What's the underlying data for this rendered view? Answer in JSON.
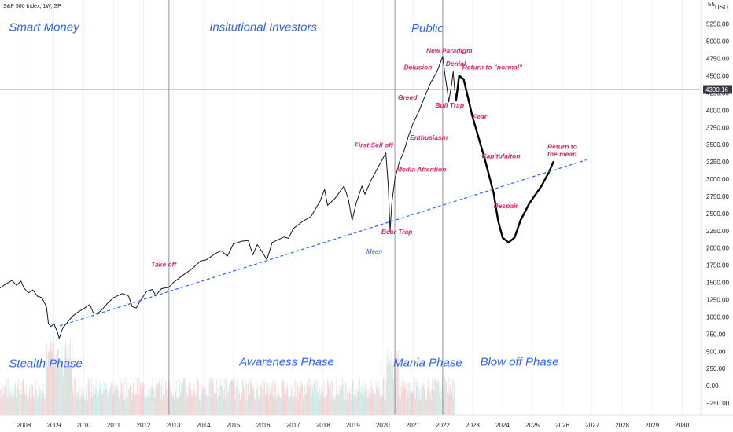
{
  "chart_data": {
    "type": "line",
    "title": "S&P 500 Index, 1W, SP",
    "currency": "USD",
    "xlabel": "",
    "ylabel": "",
    "xlim": [
      2007.2,
      2030.6
    ],
    "ylim": [
      -420,
      5600
    ],
    "x_ticks": [
      "2008",
      "2009",
      "2010",
      "2011",
      "2012",
      "2013",
      "2014",
      "2015",
      "2016",
      "2017",
      "2018",
      "2019",
      "2020",
      "2021",
      "2022",
      "2023",
      "2024",
      "2025",
      "2026",
      "2027",
      "2028",
      "2029",
      "2030"
    ],
    "y_ticks": [
      5250,
      5000,
      4750,
      4500,
      4250,
      4000,
      3750,
      3500,
      3250,
      3000,
      2750,
      2500,
      2250,
      2000,
      1750,
      1500,
      1250,
      1000,
      750,
      500,
      250,
      0,
      -250
    ],
    "y_tick_labels": [
      "5250.00",
      "5000.00",
      "4750.00",
      "4500.00",
      "4250.00",
      "4000.00",
      "3750.00",
      "3500.00",
      "3250.00",
      "3000.00",
      "2750.00",
      "2500.00",
      "2250.00",
      "2000.00",
      "1750.00",
      "1500.00",
      "1250.00",
      "1000.00",
      "750.00",
      "500.00",
      "250.00",
      "0.00",
      "−250.00"
    ],
    "top_partial_label": "55",
    "current_price": {
      "value": 4300.16,
      "label": "4300.16"
    },
    "vertical_lines_x": [
      2012.85,
      2020.4,
      2022.0
    ],
    "series": [
      {
        "style": "price",
        "points": [
          [
            2007.2,
            1420
          ],
          [
            2007.4,
            1480
          ],
          [
            2007.6,
            1530
          ],
          [
            2007.75,
            1460
          ],
          [
            2007.9,
            1520
          ],
          [
            2008.0,
            1420
          ],
          [
            2008.15,
            1350
          ],
          [
            2008.3,
            1390
          ],
          [
            2008.45,
            1300
          ],
          [
            2008.6,
            1280
          ],
          [
            2008.75,
            1150
          ],
          [
            2008.82,
            900
          ],
          [
            2008.9,
            860
          ],
          [
            2009.0,
            900
          ],
          [
            2009.1,
            800
          ],
          [
            2009.18,
            690
          ],
          [
            2009.3,
            840
          ],
          [
            2009.45,
            920
          ],
          [
            2009.6,
            1000
          ],
          [
            2009.8,
            1070
          ],
          [
            2010.0,
            1120
          ],
          [
            2010.2,
            1180
          ],
          [
            2010.32,
            1060
          ],
          [
            2010.45,
            1050
          ],
          [
            2010.6,
            1100
          ],
          [
            2010.8,
            1200
          ],
          [
            2011.0,
            1280
          ],
          [
            2011.3,
            1340
          ],
          [
            2011.5,
            1300
          ],
          [
            2011.62,
            1150
          ],
          [
            2011.75,
            1130
          ],
          [
            2011.9,
            1240
          ],
          [
            2012.1,
            1370
          ],
          [
            2012.3,
            1400
          ],
          [
            2012.4,
            1310
          ],
          [
            2012.6,
            1410
          ],
          [
            2012.85,
            1430
          ],
          [
            2013.0,
            1500
          ],
          [
            2013.3,
            1600
          ],
          [
            2013.6,
            1690
          ],
          [
            2013.9,
            1810
          ],
          [
            2014.1,
            1830
          ],
          [
            2014.4,
            1920
          ],
          [
            2014.6,
            1960
          ],
          [
            2014.8,
            1880
          ],
          [
            2015.0,
            2060
          ],
          [
            2015.3,
            2100
          ],
          [
            2015.5,
            2110
          ],
          [
            2015.65,
            1900
          ],
          [
            2015.8,
            2050
          ],
          [
            2016.0,
            1920
          ],
          [
            2016.12,
            1830
          ],
          [
            2016.3,
            2080
          ],
          [
            2016.5,
            2120
          ],
          [
            2016.7,
            2160
          ],
          [
            2016.85,
            2140
          ],
          [
            2017.0,
            2280
          ],
          [
            2017.3,
            2380
          ],
          [
            2017.6,
            2460
          ],
          [
            2017.9,
            2680
          ],
          [
            2018.05,
            2850
          ],
          [
            2018.15,
            2620
          ],
          [
            2018.4,
            2720
          ],
          [
            2018.7,
            2900
          ],
          [
            2018.85,
            2700
          ],
          [
            2018.97,
            2400
          ],
          [
            2019.1,
            2640
          ],
          [
            2019.3,
            2900
          ],
          [
            2019.4,
            2780
          ],
          [
            2019.6,
            2980
          ],
          [
            2019.9,
            3220
          ],
          [
            2020.1,
            3380
          ],
          [
            2020.18,
            2900
          ],
          [
            2020.24,
            2240
          ],
          [
            2020.3,
            2650
          ],
          [
            2020.4,
            3000
          ],
          [
            2020.55,
            3250
          ],
          [
            2020.7,
            3400
          ],
          [
            2020.85,
            3620
          ],
          [
            2021.0,
            3800
          ],
          [
            2021.2,
            3980
          ],
          [
            2021.4,
            4200
          ],
          [
            2021.6,
            4400
          ],
          [
            2021.8,
            4550
          ],
          [
            2022.0,
            4780
          ],
          [
            2022.08,
            4500
          ],
          [
            2022.15,
            4300
          ],
          [
            2022.2,
            4120
          ],
          [
            2022.3,
            4380
          ],
          [
            2022.35,
            4560
          ],
          [
            2022.4,
            4300
          ],
          [
            2022.45,
            4150
          ]
        ]
      },
      {
        "style": "projection",
        "points": [
          [
            2022.45,
            4150
          ],
          [
            2022.55,
            4500
          ],
          [
            2022.7,
            4450
          ],
          [
            2023.0,
            3900
          ],
          [
            2023.4,
            3300
          ],
          [
            2023.7,
            2800
          ],
          [
            2023.85,
            2400
          ],
          [
            2024.0,
            2150
          ],
          [
            2024.2,
            2080
          ],
          [
            2024.4,
            2150
          ],
          [
            2024.6,
            2400
          ],
          [
            2024.9,
            2650
          ],
          [
            2025.3,
            2900
          ],
          [
            2025.55,
            3100
          ],
          [
            2025.7,
            3250
          ]
        ]
      },
      {
        "style": "mean",
        "points": [
          [
            2009.2,
            870
          ],
          [
            2026.8,
            3280
          ]
        ]
      }
    ],
    "phase_labels": [
      {
        "text": "Smart Money",
        "x": 2007.5,
        "y": 5150
      },
      {
        "text": "Insitutional Investors",
        "x": 2014.2,
        "y": 5150
      },
      {
        "text": "Public",
        "x": 2020.95,
        "y": 5130
      },
      {
        "text": "Stealth Phase",
        "x": 2007.5,
        "y": 270
      },
      {
        "text": "Awareness Phase",
        "x": 2015.2,
        "y": 290
      },
      {
        "text": "Mania Phase",
        "x": 2020.35,
        "y": 280
      },
      {
        "text": "Blow off Phase",
        "x": 2023.25,
        "y": 290
      }
    ],
    "annotations": [
      {
        "text": "New Paradigm",
        "x": 2021.45,
        "y": 4830
      },
      {
        "text": "Denial",
        "x": 2022.1,
        "y": 4640
      },
      {
        "text": "Delusion",
        "x": 2020.7,
        "y": 4590
      },
      {
        "text": "Return to \"normal\"",
        "x": 2022.65,
        "y": 4590
      },
      {
        "text": "Greed",
        "x": 2020.5,
        "y": 4150
      },
      {
        "text": "Bull Trap",
        "x": 2021.75,
        "y": 4040
      },
      {
        "text": "Fear",
        "x": 2023.0,
        "y": 3870
      },
      {
        "text": "Enthusiasm",
        "x": 2020.9,
        "y": 3570
      },
      {
        "text": "First Sell off",
        "x": 2019.05,
        "y": 3460
      },
      {
        "text": "Return to",
        "x": 2025.5,
        "y": 3440
      },
      {
        "text": "the mean",
        "x": 2025.5,
        "y": 3330
      },
      {
        "text": "Capitulaiton",
        "x": 2023.3,
        "y": 3300
      },
      {
        "text": "Media Attention",
        "x": 2020.45,
        "y": 3110
      },
      {
        "text": "Despair",
        "x": 2023.7,
        "y": 2580
      },
      {
        "text": "Bear Trap",
        "x": 2019.95,
        "y": 2200
      },
      {
        "text": "Take off",
        "x": 2012.25,
        "y": 1730
      }
    ],
    "mean_label": {
      "text": "Mean",
      "x": 2019.45,
      "y": 1920
    },
    "volume": {
      "start": 2007.2,
      "end": 2022.4,
      "seed": 7
    }
  }
}
